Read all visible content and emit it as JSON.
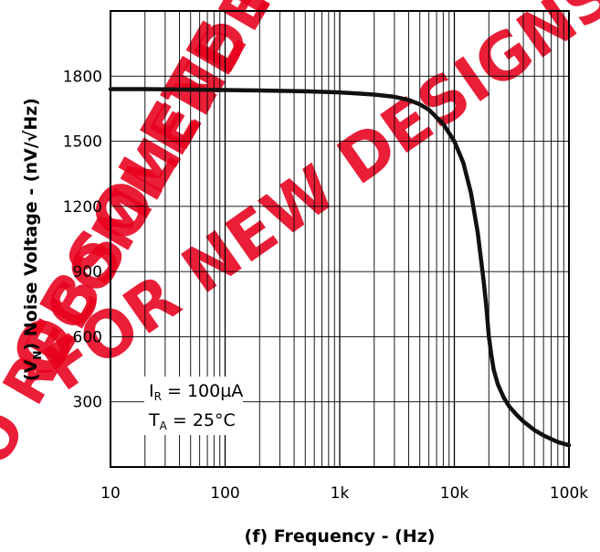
{
  "watermark": {
    "line1": "OBSOLETE PRODUCT",
    "line2": "NO RECOMMENDED REPLACEMENT",
    "line3": "FOR NEW DESIGNS",
    "color": "#e8001c"
  },
  "chart_data": {
    "type": "line",
    "title": "",
    "xlabel": "(f)  Frequency - (Hz)",
    "ylabel": "(VN)  Noise Voltage - (nV/√Hz)",
    "ylabel_symbol": "(V",
    "ylabel_subscript": "N",
    "ylabel_rest": ")  Noise Voltage - (nV/√Hz)",
    "x_scale": "log",
    "xlim": [
      10,
      100000
    ],
    "ylim": [
      0,
      2100
    ],
    "x_ticks": [
      {
        "value": 10,
        "label": "10"
      },
      {
        "value": 100,
        "label": "100"
      },
      {
        "value": 1000,
        "label": "1k"
      },
      {
        "value": 10000,
        "label": "10k"
      },
      {
        "value": 100000,
        "label": "100k"
      }
    ],
    "y_ticks": [
      {
        "value": 300,
        "label": "300"
      },
      {
        "value": 600,
        "label": "600"
      },
      {
        "value": 900,
        "label": "900"
      },
      {
        "value": 1200,
        "label": "1200"
      },
      {
        "value": 1500,
        "label": "1500"
      },
      {
        "value": 1800,
        "label": "1800"
      }
    ],
    "grid": true,
    "series": [
      {
        "x": [
          10,
          20,
          50,
          100,
          200,
          500,
          1000,
          2000,
          3000,
          4000,
          5000,
          6000,
          8000,
          10000,
          12000,
          14000,
          16000,
          18000,
          19000,
          20000,
          21000,
          22000,
          24000,
          27000,
          30000,
          35000,
          40000,
          50000,
          60000,
          80000,
          100000
        ],
        "y": [
          1740,
          1740,
          1738,
          1736,
          1734,
          1730,
          1725,
          1715,
          1705,
          1690,
          1670,
          1645,
          1580,
          1500,
          1400,
          1260,
          1080,
          860,
          740,
          600,
          520,
          450,
          380,
          320,
          280,
          240,
          210,
          170,
          145,
          115,
          100
        ]
      }
    ],
    "annotations": [
      {
        "sym": "I",
        "sub": "R",
        "rest": " = 100µA"
      },
      {
        "sym": "T",
        "sub": "A",
        "rest": " = 25°C"
      }
    ]
  }
}
